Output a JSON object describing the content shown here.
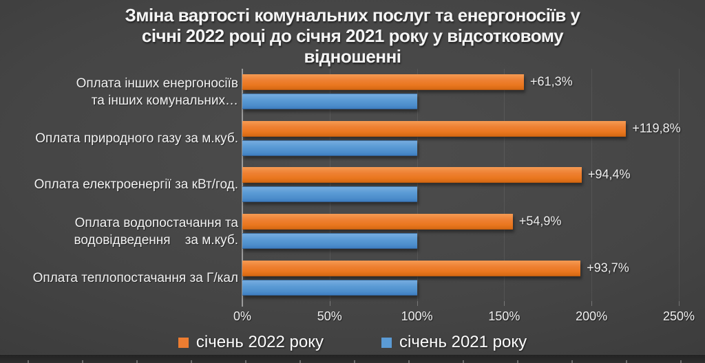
{
  "title": {
    "lines": [
      "Зміна вартості комунальних послуг та енергоносіїв у",
      "січні 2022 році до січня 2021 року у відсотковому",
      "відношенні"
    ]
  },
  "chart_data": {
    "type": "bar",
    "orientation": "horizontal",
    "title": "Зміна вартості комунальних послуг та енергоносіїв у січні 2022 році до січня 2021 року у відсотковому відношенні",
    "categories": [
      {
        "lines": [
          "Оплата інших енергоносіїв",
          "та інших комунальних…"
        ]
      },
      {
        "lines": [
          "Оплата природного газу за м.куб."
        ]
      },
      {
        "lines": [
          "Оплата електроенергії за кВт/год."
        ]
      },
      {
        "lines": [
          "Оплата водопостачання та",
          "водовідведення    за м.куб."
        ]
      },
      {
        "lines": [
          "Оплата теплопостачання за Г/кал"
        ]
      }
    ],
    "series": [
      {
        "name": "січень 2022 року",
        "color": "#ED7D31",
        "values": [
          161.3,
          219.8,
          194.4,
          154.9,
          193.7
        ],
        "data_labels": [
          "+61,3%",
          "+119,8%",
          "+94,4%",
          "+54,9%",
          "+93,7%"
        ]
      },
      {
        "name": "січень 2021 року",
        "color": "#5B9BD5",
        "values": [
          100,
          100,
          100,
          100,
          100
        ],
        "data_labels": [
          "",
          "",
          "",
          "",
          ""
        ]
      }
    ],
    "xlim": [
      0,
      250
    ],
    "x_ticks": [
      {
        "value": 0,
        "label": "0%"
      },
      {
        "value": 50,
        "label": "50%"
      },
      {
        "value": 100,
        "label": "100%"
      },
      {
        "value": 150,
        "label": "150%"
      },
      {
        "value": 200,
        "label": "200%"
      },
      {
        "value": 250,
        "label": "250%"
      }
    ],
    "grid": "vertical-major",
    "legend_position": "bottom"
  },
  "colors": {
    "background_center": "#4D4D4D",
    "background_edge": "#2B2B2B",
    "bar_2022": "#ED7D31",
    "bar_2021": "#5B9BD5",
    "text": "#F2F2F2",
    "axis_line": "#9B9B9B"
  }
}
